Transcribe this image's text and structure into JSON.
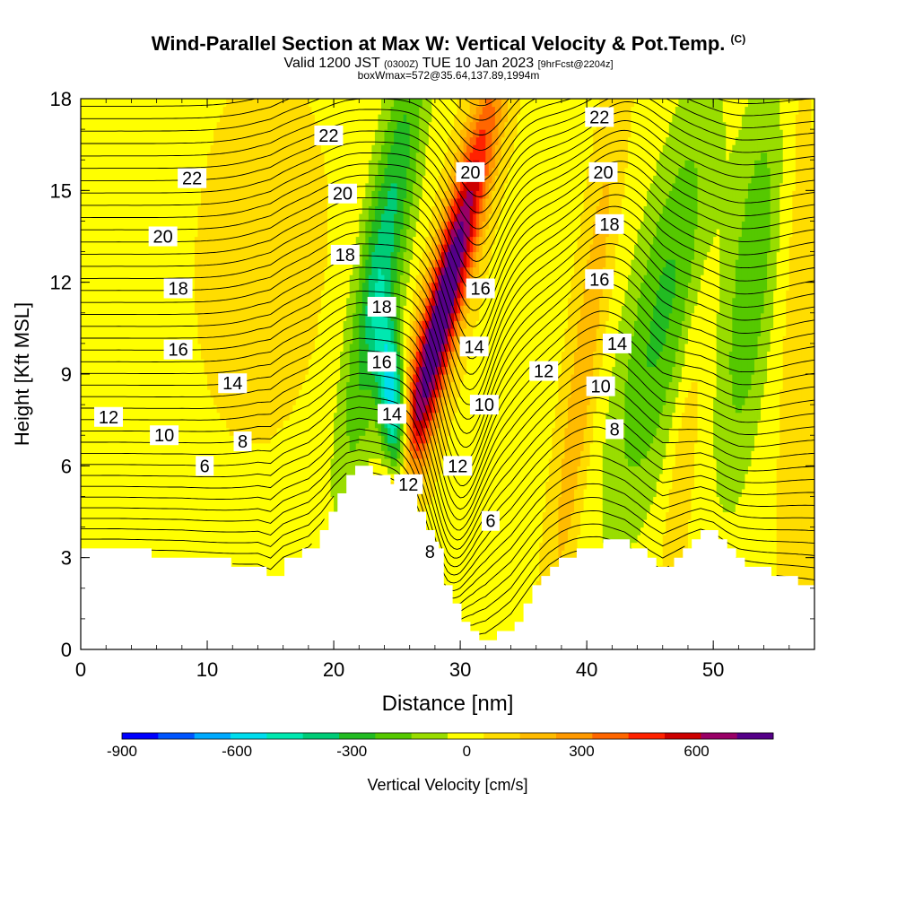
{
  "title": {
    "main": "Wind-Parallel Section at Max W: Vertical Velocity & Pot.Temp.",
    "copyright": "(C)",
    "valid_prefix": "Valid 1200 JST",
    "utc": "(0300Z)",
    "valid_suffix": "TUE 10 Jan 2023",
    "forecast": "[9hrFcst@2204z]",
    "box": "boxWmax=572@35.64,137.89,1994m"
  },
  "chart_data": {
    "type": "heatmap",
    "xlabel": "Distance [nm]",
    "ylabel": "Height [Kft MSL]",
    "xlim": [
      0,
      58
    ],
    "ylim": [
      0,
      18
    ],
    "x_ticks": [
      0,
      10,
      20,
      30,
      40,
      50
    ],
    "y_ticks": [
      0,
      3,
      6,
      9,
      12,
      15,
      18
    ],
    "colorbar": {
      "label": "Vertical Velocity [cm/s]",
      "ticks": [
        -900,
        -600,
        -300,
        0,
        300,
        600
      ],
      "range": [
        -900,
        800
      ],
      "step": 100,
      "colors": [
        "#0000ff",
        "#0055ff",
        "#00aaff",
        "#00ddee",
        "#00e8b0",
        "#00cc77",
        "#22bb22",
        "#55c800",
        "#99dd00",
        "#ffff00",
        "#ffdd00",
        "#ffbb00",
        "#ff9900",
        "#ff6600",
        "#ff2200",
        "#cc0000",
        "#990066",
        "#550088"
      ]
    },
    "terrain_kft": [
      [
        0,
        3.2
      ],
      [
        3,
        3.2
      ],
      [
        8,
        3.1
      ],
      [
        11,
        2.9
      ],
      [
        14,
        2.7
      ],
      [
        15,
        2.3
      ],
      [
        16,
        2.9
      ],
      [
        17,
        3.1
      ],
      [
        18,
        3.3
      ],
      [
        19,
        4.0
      ],
      [
        20,
        5.0
      ],
      [
        21,
        5.8
      ],
      [
        22,
        6.0
      ],
      [
        23,
        5.8
      ],
      [
        24,
        5.6
      ],
      [
        25,
        5.4
      ],
      [
        26,
        5.0
      ],
      [
        27,
        4.2
      ],
      [
        28,
        3.2
      ],
      [
        29,
        1.8
      ],
      [
        30,
        1.0
      ],
      [
        31,
        0.5
      ],
      [
        32,
        0.3
      ],
      [
        33,
        0.5
      ],
      [
        34,
        0.8
      ],
      [
        35,
        1.5
      ],
      [
        36,
        2.2
      ],
      [
        37,
        2.7
      ],
      [
        38,
        3.0
      ],
      [
        39,
        3.2
      ],
      [
        41,
        3.5
      ],
      [
        43,
        3.5
      ],
      [
        44,
        3.2
      ],
      [
        45,
        2.8
      ],
      [
        46,
        2.5
      ],
      [
        47,
        3.0
      ],
      [
        48,
        3.5
      ],
      [
        49,
        3.9
      ],
      [
        50,
        3.8
      ],
      [
        51,
        3.3
      ],
      [
        52,
        2.9
      ],
      [
        54,
        2.6
      ],
      [
        56,
        2.3
      ],
      [
        58,
        2.0
      ]
    ],
    "vertical_velocity_features": [
      {
        "name": "updraft-core",
        "x": 30.2,
        "y": 12.0,
        "value": 750
      },
      {
        "name": "downdraft-core",
        "x": 25.0,
        "y": 8.0,
        "value": -600
      },
      {
        "name": "lee-downdraft",
        "x": 47.0,
        "y": 11.0,
        "value": -250
      },
      {
        "name": "far-downdraft",
        "x": 54.0,
        "y": 12.0,
        "value": -250
      },
      {
        "name": "upwind-updraft",
        "x": 14.0,
        "y": 14.0,
        "value": 100
      }
    ],
    "theta_labels": [
      {
        "text": "22",
        "x": 8.8,
        "y": 15.4
      },
      {
        "text": "20",
        "x": 6.5,
        "y": 13.5
      },
      {
        "text": "18",
        "x": 7.7,
        "y": 11.8
      },
      {
        "text": "16",
        "x": 7.7,
        "y": 9.8
      },
      {
        "text": "14",
        "x": 12.0,
        "y": 8.7
      },
      {
        "text": "12",
        "x": 2.2,
        "y": 7.6
      },
      {
        "text": "10",
        "x": 6.6,
        "y": 7.0
      },
      {
        "text": "8",
        "x": 12.8,
        "y": 6.8
      },
      {
        "text": "6",
        "x": 9.8,
        "y": 6.0
      },
      {
        "text": "22",
        "x": 19.6,
        "y": 16.8
      },
      {
        "text": "20",
        "x": 20.7,
        "y": 14.9
      },
      {
        "text": "18",
        "x": 20.9,
        "y": 12.9
      },
      {
        "text": "18",
        "x": 23.8,
        "y": 11.2
      },
      {
        "text": "16",
        "x": 23.8,
        "y": 9.4
      },
      {
        "text": "14",
        "x": 24.6,
        "y": 7.7
      },
      {
        "text": "12",
        "x": 25.9,
        "y": 5.4
      },
      {
        "text": "8",
        "x": 27.6,
        "y": 3.2
      },
      {
        "text": "20",
        "x": 30.8,
        "y": 15.6
      },
      {
        "text": "16",
        "x": 31.6,
        "y": 11.8
      },
      {
        "text": "14",
        "x": 31.1,
        "y": 9.9
      },
      {
        "text": "10",
        "x": 31.9,
        "y": 8.0
      },
      {
        "text": "12",
        "x": 29.8,
        "y": 6.0
      },
      {
        "text": "6",
        "x": 32.4,
        "y": 4.2
      },
      {
        "text": "22",
        "x": 41.0,
        "y": 17.4
      },
      {
        "text": "20",
        "x": 41.3,
        "y": 15.6
      },
      {
        "text": "18",
        "x": 41.8,
        "y": 13.9
      },
      {
        "text": "16",
        "x": 41.0,
        "y": 12.1
      },
      {
        "text": "14",
        "x": 42.4,
        "y": 10.0
      },
      {
        "text": "12",
        "x": 36.6,
        "y": 9.1
      },
      {
        "text": "10",
        "x": 41.1,
        "y": 8.6
      },
      {
        "text": "8",
        "x": 42.2,
        "y": 7.2
      }
    ]
  }
}
